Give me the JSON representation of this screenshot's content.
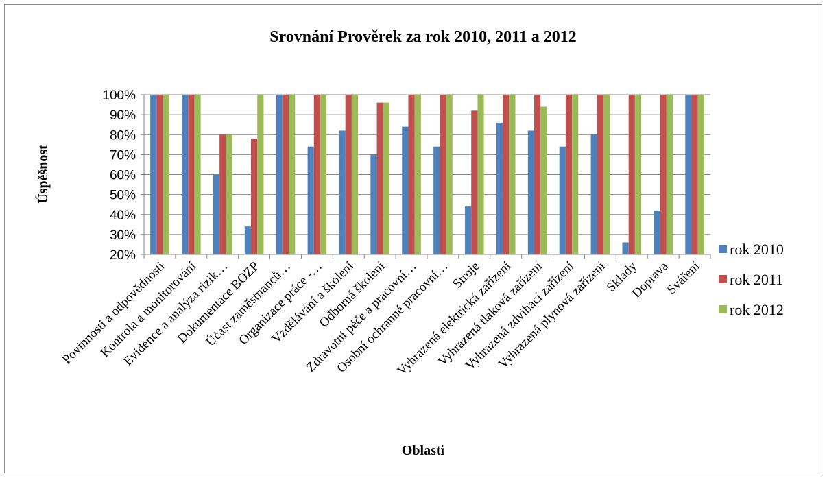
{
  "chart_data": {
    "type": "bar",
    "title": "Srovnání Prověrek za rok 2010, 2011 a 2012",
    "xlabel": "Oblasti",
    "ylabel": "Úspěšnost",
    "ylim": [
      0.2,
      1.0
    ],
    "yticks": [
      "20%",
      "30%",
      "40%",
      "50%",
      "60%",
      "70%",
      "80%",
      "90%",
      "100%"
    ],
    "grid": true,
    "legend_position": "right",
    "categories": [
      "Povinnosti a odpovědnosti",
      "Kontrola a monitorování",
      "Evidence a analýza rizik…",
      "Dokumentace BOZP",
      "Účast zaměstnanců…",
      "Organizace práce -…",
      "Vzdělávání a školení",
      "Odborná školení",
      "Zdravotní péče a pracovní…",
      "Osobní ochranné pracovní…",
      "Stroje",
      "Vyhrazená elektrická zařízení",
      "Vyhrazená tlaková zařízení",
      "Vyhrazená zdvihací zařízení",
      "Vyhrazená plynová zařízení",
      "Sklady",
      "Doprava",
      "Sváření"
    ],
    "series": [
      {
        "name": "rok 2010",
        "color": "#4f81bd",
        "values": [
          1.0,
          1.0,
          0.6,
          0.34,
          1.0,
          0.74,
          0.82,
          0.7,
          0.84,
          0.74,
          0.44,
          0.86,
          0.82,
          0.74,
          0.8,
          0.26,
          0.42,
          1.0
        ]
      },
      {
        "name": "rok 2011",
        "color": "#c0504d",
        "values": [
          1.0,
          1.0,
          0.8,
          0.78,
          1.0,
          1.0,
          1.0,
          0.96,
          1.0,
          1.0,
          0.92,
          1.0,
          1.0,
          1.0,
          1.0,
          1.0,
          1.0,
          1.0
        ]
      },
      {
        "name": "rok 2012",
        "color": "#9bbb59",
        "values": [
          1.0,
          1.0,
          0.8,
          1.0,
          1.0,
          1.0,
          1.0,
          0.96,
          1.0,
          1.0,
          1.0,
          1.0,
          0.94,
          1.0,
          1.0,
          1.0,
          1.0,
          1.0
        ]
      }
    ]
  }
}
